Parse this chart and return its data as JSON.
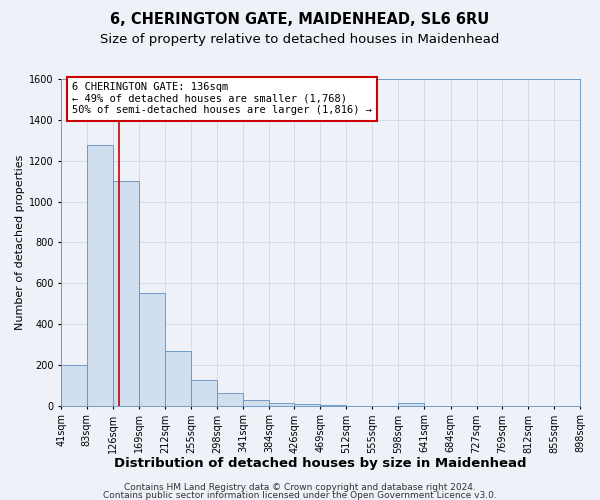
{
  "title": "6, CHERINGTON GATE, MAIDENHEAD, SL6 6RU",
  "subtitle": "Size of property relative to detached houses in Maidenhead",
  "xlabel": "Distribution of detached houses by size in Maidenhead",
  "ylabel": "Number of detached properties",
  "bin_edges": [
    41,
    83,
    126,
    169,
    212,
    255,
    298,
    341,
    384,
    426,
    469,
    512,
    555,
    598,
    641,
    684,
    727,
    769,
    812,
    855,
    898
  ],
  "bin_counts": [
    200,
    1275,
    1100,
    550,
    270,
    125,
    60,
    30,
    15,
    10,
    5,
    0,
    0,
    15,
    0,
    0,
    0,
    0,
    0,
    0
  ],
  "bar_face_color": "#d0dff0",
  "bar_edge_color": "#6090c0",
  "vline_x": 136,
  "vline_color": "#cc0000",
  "ylim": [
    0,
    1600
  ],
  "yticks": [
    0,
    200,
    400,
    600,
    800,
    1000,
    1200,
    1400,
    1600
  ],
  "tick_labels": [
    "41sqm",
    "83sqm",
    "126sqm",
    "169sqm",
    "212sqm",
    "255sqm",
    "298sqm",
    "341sqm",
    "384sqm",
    "426sqm",
    "469sqm",
    "512sqm",
    "555sqm",
    "598sqm",
    "641sqm",
    "684sqm",
    "727sqm",
    "769sqm",
    "812sqm",
    "855sqm",
    "898sqm"
  ],
  "annotation_title": "6 CHERINGTON GATE: 136sqm",
  "annotation_line1": "← 49% of detached houses are smaller (1,768)",
  "annotation_line2": "50% of semi-detached houses are larger (1,816) →",
  "annotation_box_color": "#ffffff",
  "annotation_box_edge": "#cc0000",
  "footer1": "Contains HM Land Registry data © Crown copyright and database right 2024.",
  "footer2": "Contains public sector information licensed under the Open Government Licence v3.0.",
  "background_color": "#eef2f8",
  "grid_color": "#c8d4e0",
  "title_fontsize": 10.5,
  "subtitle_fontsize": 9.5,
  "xlabel_fontsize": 9.5,
  "ylabel_fontsize": 8,
  "tick_fontsize": 7,
  "annot_fontsize": 7.5,
  "footer_fontsize": 6.5
}
